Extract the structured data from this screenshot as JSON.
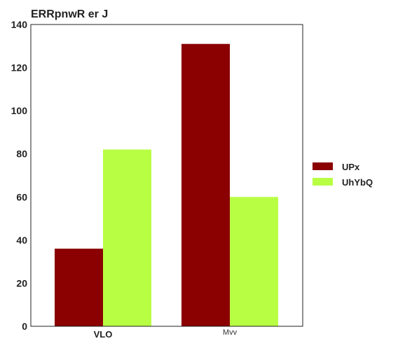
{
  "chart_data": {
    "type": "bar",
    "title": "ERRpnwR er J",
    "xlabel": "",
    "ylabel": "",
    "categories": [
      "VLO",
      "Mvv"
    ],
    "series": [
      {
        "name": "UPx",
        "color": "#8b0000",
        "values": [
          36,
          131
        ]
      },
      {
        "name": "UhYbQ",
        "color": "#b8ff44",
        "values": [
          82,
          60
        ]
      }
    ],
    "ylim": [
      0,
      140
    ],
    "yticks": [
      0,
      20,
      40,
      60,
      80,
      100,
      120,
      140
    ],
    "grid": false,
    "legend_position": "right"
  }
}
